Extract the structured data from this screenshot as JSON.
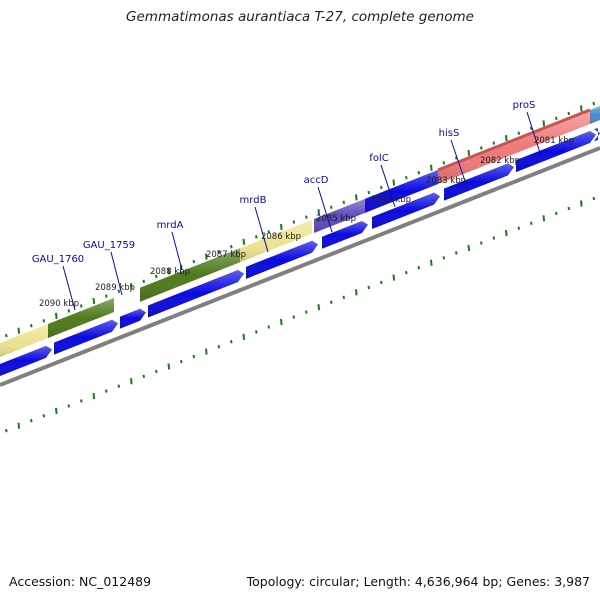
{
  "title": "Gemmatimonas aurantiaca T-27, complete genome",
  "footer": {
    "accession": "Accession: NC_012489",
    "summary": "Topology: circular; Length: 4,636,964 bp; Genes: 3,987"
  },
  "colors": {
    "cds_blue": "#0a0adf",
    "backbone": "#808080",
    "dots": "#1a7a1a",
    "label_blue": "#0a0aa8"
  },
  "feature_icons": [
    "bar",
    "arrow"
  ],
  "genes": [
    {
      "name": "GAU_1760",
      "color": "#4f7a1c"
    },
    {
      "name": "GAU_1759",
      "color": "#4f7a1c"
    },
    {
      "name": "mrdA",
      "color": "#4f7a1c"
    },
    {
      "name": "mrdB",
      "color": "#ece38f"
    },
    {
      "name": "accD",
      "color": "#5c4bbd"
    },
    {
      "name": "folC",
      "color": "#0a0adf"
    },
    {
      "name": "hisS",
      "color": "#ef7a7a"
    },
    {
      "name": "proS",
      "color": "#c95454"
    }
  ],
  "ticks": [
    "2090 kbp",
    "2089 kbp",
    "2088 kbp",
    "2087 kbp",
    "2086 kbp",
    "2085 kbp",
    "2084 kbp",
    "2083 kbp",
    "2082 kbp",
    "2081 kbp"
  ]
}
